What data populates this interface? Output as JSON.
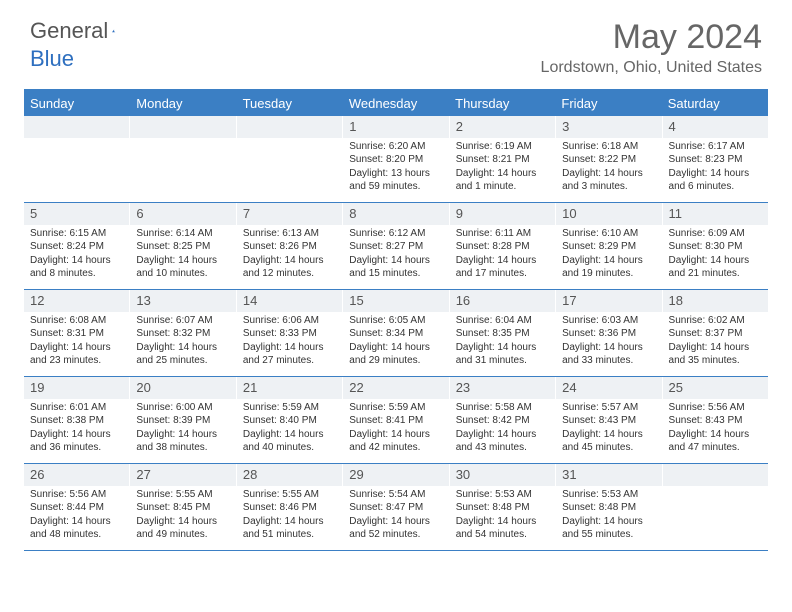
{
  "logo": {
    "text1": "General",
    "text2": "Blue"
  },
  "title": "May 2024",
  "location": "Lordstown, Ohio, United States",
  "colors": {
    "header_bar": "#3b7fc4",
    "daynum_bg": "#eef1f4",
    "text": "#555555",
    "title_text": "#666666"
  },
  "dow": [
    "Sunday",
    "Monday",
    "Tuesday",
    "Wednesday",
    "Thursday",
    "Friday",
    "Saturday"
  ],
  "weeks": [
    [
      {
        "n": "",
        "sunrise": "",
        "sunset": "",
        "daylight": ""
      },
      {
        "n": "",
        "sunrise": "",
        "sunset": "",
        "daylight": ""
      },
      {
        "n": "",
        "sunrise": "",
        "sunset": "",
        "daylight": ""
      },
      {
        "n": "1",
        "sunrise": "Sunrise: 6:20 AM",
        "sunset": "Sunset: 8:20 PM",
        "daylight": "Daylight: 13 hours and 59 minutes."
      },
      {
        "n": "2",
        "sunrise": "Sunrise: 6:19 AM",
        "sunset": "Sunset: 8:21 PM",
        "daylight": "Daylight: 14 hours and 1 minute."
      },
      {
        "n": "3",
        "sunrise": "Sunrise: 6:18 AM",
        "sunset": "Sunset: 8:22 PM",
        "daylight": "Daylight: 14 hours and 3 minutes."
      },
      {
        "n": "4",
        "sunrise": "Sunrise: 6:17 AM",
        "sunset": "Sunset: 8:23 PM",
        "daylight": "Daylight: 14 hours and 6 minutes."
      }
    ],
    [
      {
        "n": "5",
        "sunrise": "Sunrise: 6:15 AM",
        "sunset": "Sunset: 8:24 PM",
        "daylight": "Daylight: 14 hours and 8 minutes."
      },
      {
        "n": "6",
        "sunrise": "Sunrise: 6:14 AM",
        "sunset": "Sunset: 8:25 PM",
        "daylight": "Daylight: 14 hours and 10 minutes."
      },
      {
        "n": "7",
        "sunrise": "Sunrise: 6:13 AM",
        "sunset": "Sunset: 8:26 PM",
        "daylight": "Daylight: 14 hours and 12 minutes."
      },
      {
        "n": "8",
        "sunrise": "Sunrise: 6:12 AM",
        "sunset": "Sunset: 8:27 PM",
        "daylight": "Daylight: 14 hours and 15 minutes."
      },
      {
        "n": "9",
        "sunrise": "Sunrise: 6:11 AM",
        "sunset": "Sunset: 8:28 PM",
        "daylight": "Daylight: 14 hours and 17 minutes."
      },
      {
        "n": "10",
        "sunrise": "Sunrise: 6:10 AM",
        "sunset": "Sunset: 8:29 PM",
        "daylight": "Daylight: 14 hours and 19 minutes."
      },
      {
        "n": "11",
        "sunrise": "Sunrise: 6:09 AM",
        "sunset": "Sunset: 8:30 PM",
        "daylight": "Daylight: 14 hours and 21 minutes."
      }
    ],
    [
      {
        "n": "12",
        "sunrise": "Sunrise: 6:08 AM",
        "sunset": "Sunset: 8:31 PM",
        "daylight": "Daylight: 14 hours and 23 minutes."
      },
      {
        "n": "13",
        "sunrise": "Sunrise: 6:07 AM",
        "sunset": "Sunset: 8:32 PM",
        "daylight": "Daylight: 14 hours and 25 minutes."
      },
      {
        "n": "14",
        "sunrise": "Sunrise: 6:06 AM",
        "sunset": "Sunset: 8:33 PM",
        "daylight": "Daylight: 14 hours and 27 minutes."
      },
      {
        "n": "15",
        "sunrise": "Sunrise: 6:05 AM",
        "sunset": "Sunset: 8:34 PM",
        "daylight": "Daylight: 14 hours and 29 minutes."
      },
      {
        "n": "16",
        "sunrise": "Sunrise: 6:04 AM",
        "sunset": "Sunset: 8:35 PM",
        "daylight": "Daylight: 14 hours and 31 minutes."
      },
      {
        "n": "17",
        "sunrise": "Sunrise: 6:03 AM",
        "sunset": "Sunset: 8:36 PM",
        "daylight": "Daylight: 14 hours and 33 minutes."
      },
      {
        "n": "18",
        "sunrise": "Sunrise: 6:02 AM",
        "sunset": "Sunset: 8:37 PM",
        "daylight": "Daylight: 14 hours and 35 minutes."
      }
    ],
    [
      {
        "n": "19",
        "sunrise": "Sunrise: 6:01 AM",
        "sunset": "Sunset: 8:38 PM",
        "daylight": "Daylight: 14 hours and 36 minutes."
      },
      {
        "n": "20",
        "sunrise": "Sunrise: 6:00 AM",
        "sunset": "Sunset: 8:39 PM",
        "daylight": "Daylight: 14 hours and 38 minutes."
      },
      {
        "n": "21",
        "sunrise": "Sunrise: 5:59 AM",
        "sunset": "Sunset: 8:40 PM",
        "daylight": "Daylight: 14 hours and 40 minutes."
      },
      {
        "n": "22",
        "sunrise": "Sunrise: 5:59 AM",
        "sunset": "Sunset: 8:41 PM",
        "daylight": "Daylight: 14 hours and 42 minutes."
      },
      {
        "n": "23",
        "sunrise": "Sunrise: 5:58 AM",
        "sunset": "Sunset: 8:42 PM",
        "daylight": "Daylight: 14 hours and 43 minutes."
      },
      {
        "n": "24",
        "sunrise": "Sunrise: 5:57 AM",
        "sunset": "Sunset: 8:43 PM",
        "daylight": "Daylight: 14 hours and 45 minutes."
      },
      {
        "n": "25",
        "sunrise": "Sunrise: 5:56 AM",
        "sunset": "Sunset: 8:43 PM",
        "daylight": "Daylight: 14 hours and 47 minutes."
      }
    ],
    [
      {
        "n": "26",
        "sunrise": "Sunrise: 5:56 AM",
        "sunset": "Sunset: 8:44 PM",
        "daylight": "Daylight: 14 hours and 48 minutes."
      },
      {
        "n": "27",
        "sunrise": "Sunrise: 5:55 AM",
        "sunset": "Sunset: 8:45 PM",
        "daylight": "Daylight: 14 hours and 49 minutes."
      },
      {
        "n": "28",
        "sunrise": "Sunrise: 5:55 AM",
        "sunset": "Sunset: 8:46 PM",
        "daylight": "Daylight: 14 hours and 51 minutes."
      },
      {
        "n": "29",
        "sunrise": "Sunrise: 5:54 AM",
        "sunset": "Sunset: 8:47 PM",
        "daylight": "Daylight: 14 hours and 52 minutes."
      },
      {
        "n": "30",
        "sunrise": "Sunrise: 5:53 AM",
        "sunset": "Sunset: 8:48 PM",
        "daylight": "Daylight: 14 hours and 54 minutes."
      },
      {
        "n": "31",
        "sunrise": "Sunrise: 5:53 AM",
        "sunset": "Sunset: 8:48 PM",
        "daylight": "Daylight: 14 hours and 55 minutes."
      },
      {
        "n": "",
        "sunrise": "",
        "sunset": "",
        "daylight": ""
      }
    ]
  ]
}
